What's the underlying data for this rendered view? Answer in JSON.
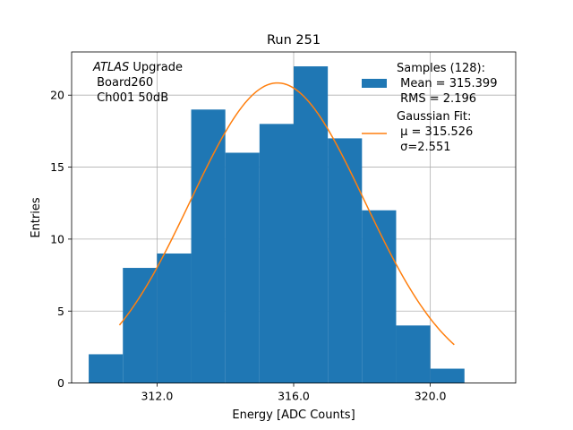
{
  "chart_data": {
    "type": "bar",
    "title": "Run 251",
    "xlabel": "Energy [ADC Counts]",
    "ylabel": "Entries",
    "xlim": [
      309.5,
      322.5
    ],
    "ylim": [
      0,
      23
    ],
    "grid": true,
    "x_ticks": [
      312.0,
      316.0,
      320.0
    ],
    "x_tick_labels": [
      "312.0",
      "316.0",
      "320.0"
    ],
    "y_ticks": [
      0,
      5,
      10,
      15,
      20
    ],
    "y_tick_labels": [
      "0",
      "5",
      "10",
      "15",
      "20"
    ],
    "bins": [
      {
        "x0": 310.0,
        "x1": 311.0,
        "count": 2
      },
      {
        "x0": 311.0,
        "x1": 312.0,
        "count": 8
      },
      {
        "x0": 312.0,
        "x1": 313.0,
        "count": 9
      },
      {
        "x0": 313.0,
        "x1": 314.0,
        "count": 19
      },
      {
        "x0": 314.0,
        "x1": 315.0,
        "count": 16
      },
      {
        "x0": 315.0,
        "x1": 316.0,
        "count": 18
      },
      {
        "x0": 316.0,
        "x1": 317.0,
        "count": 22
      },
      {
        "x0": 317.0,
        "x1": 318.0,
        "count": 17
      },
      {
        "x0": 318.0,
        "x1": 319.0,
        "count": 12
      },
      {
        "x0": 319.0,
        "x1": 320.0,
        "count": 4
      },
      {
        "x0": 320.0,
        "x1": 321.0,
        "count": 1
      }
    ],
    "fit": {
      "amplitude": 20.85,
      "mu": 315.526,
      "sigma": 2.551,
      "x_range": [
        310.9,
        320.7
      ]
    },
    "colors": {
      "histogram": "#1f77b4",
      "fit": "#ff7f0e",
      "grid": "#b0b0b0"
    },
    "annotation": {
      "italic": "ATLAS",
      "line1_rest": " Upgrade",
      "line2": " Board260",
      "line3": " Ch001 50dB"
    },
    "legend": {
      "placement": "top-right",
      "hist_line1": "Samples (128):",
      "hist_line2": " Mean = 315.399",
      "hist_line3": " RMS = 2.196",
      "fit_line1": "Gaussian Fit:",
      "fit_line2": " μ = 315.526",
      "fit_line3": " σ=2.551"
    }
  }
}
